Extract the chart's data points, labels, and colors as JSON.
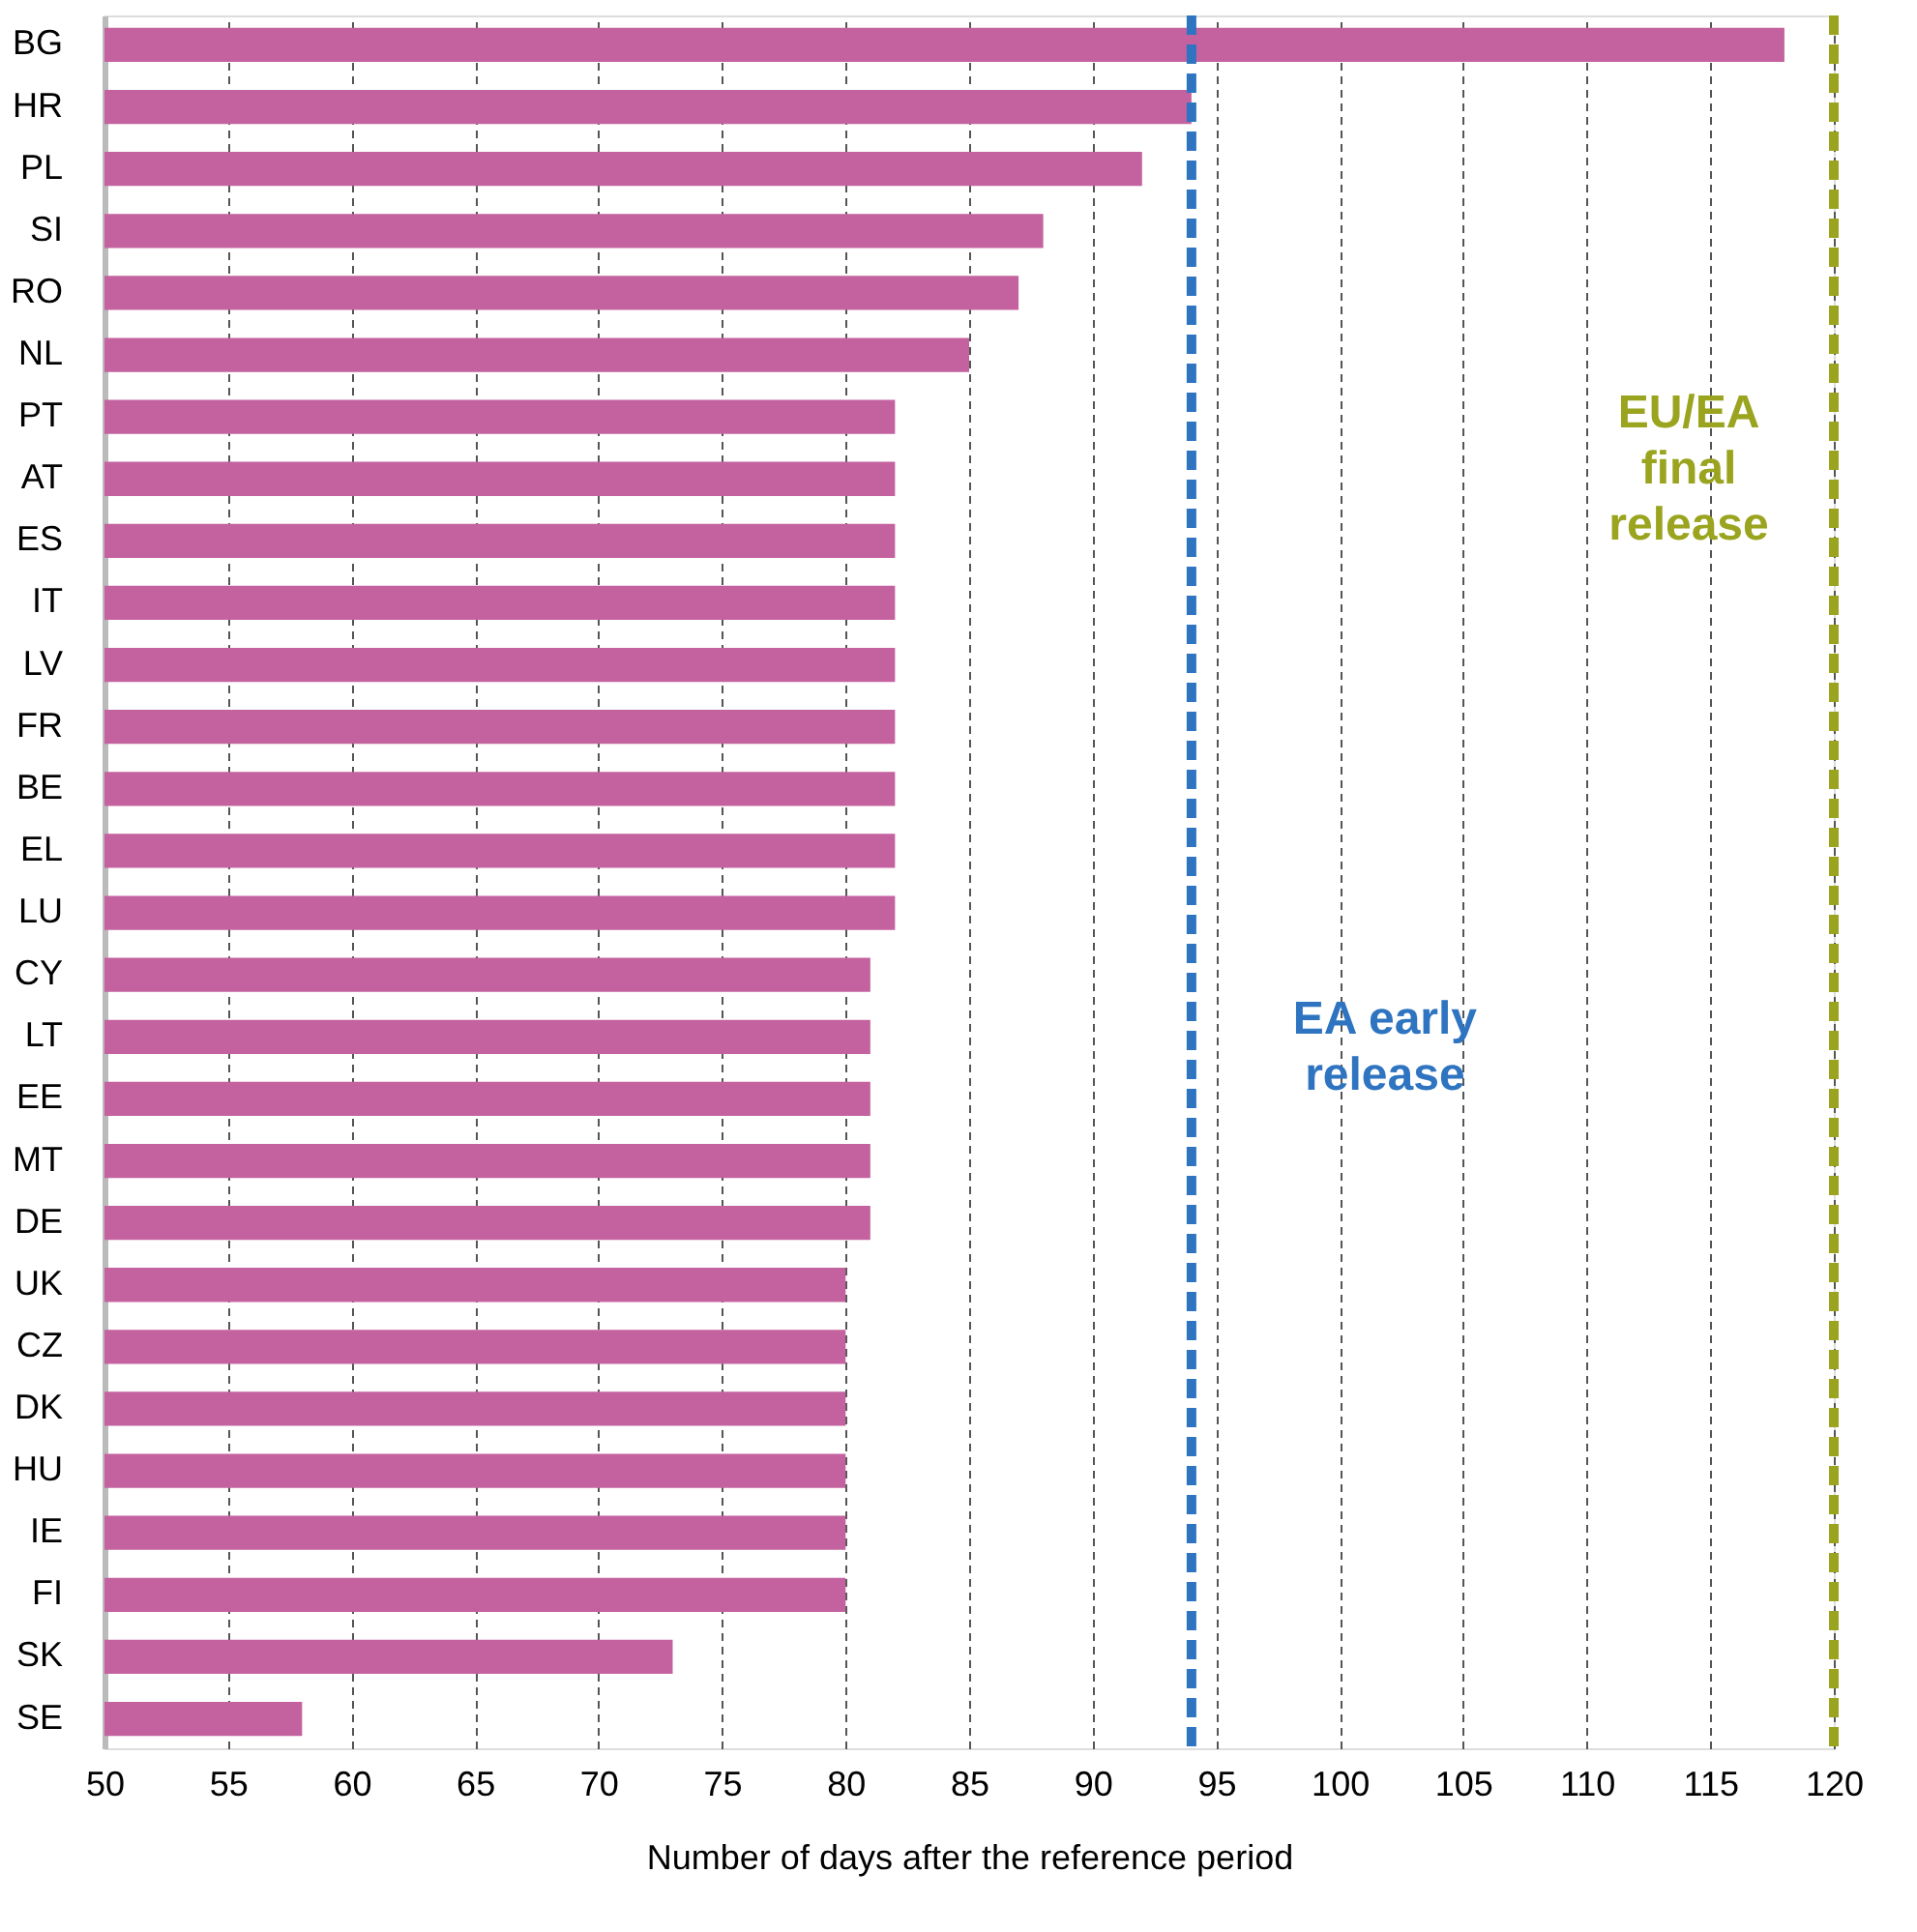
{
  "chart_data": {
    "type": "bar",
    "orientation": "horizontal",
    "xlabel": "Number of days after the reference period",
    "categories": [
      "BG",
      "HR",
      "PL",
      "SI",
      "RO",
      "NL",
      "PT",
      "AT",
      "ES",
      "IT",
      "LV",
      "FR",
      "BE",
      "EL",
      "LU",
      "CY",
      "LT",
      "EE",
      "MT",
      "DE",
      "UK",
      "CZ",
      "DK",
      "HU",
      "IE",
      "FI",
      "SK",
      "SE"
    ],
    "values": [
      118,
      94,
      92,
      88,
      87,
      85,
      82,
      82,
      82,
      82,
      82,
      82,
      82,
      82,
      82,
      81,
      81,
      81,
      81,
      81,
      80,
      80,
      80,
      80,
      80,
      80,
      73,
      58
    ],
    "color": "#c4629f",
    "xlim": [
      50,
      120
    ],
    "xticks": [
      50,
      55,
      60,
      65,
      70,
      75,
      80,
      85,
      90,
      95,
      100,
      105,
      110,
      115,
      120
    ],
    "grid": "x",
    "ref_lines": [
      {
        "axis": "x",
        "value": 94,
        "label": "EA early\nrelease",
        "color": "#2e74c0",
        "line_style": "dashed"
      },
      {
        "axis": "x",
        "value": 120,
        "label": "EU/EA\nfinal\nrelease",
        "color": "#9aa41e",
        "line_style": "dashed"
      }
    ]
  }
}
